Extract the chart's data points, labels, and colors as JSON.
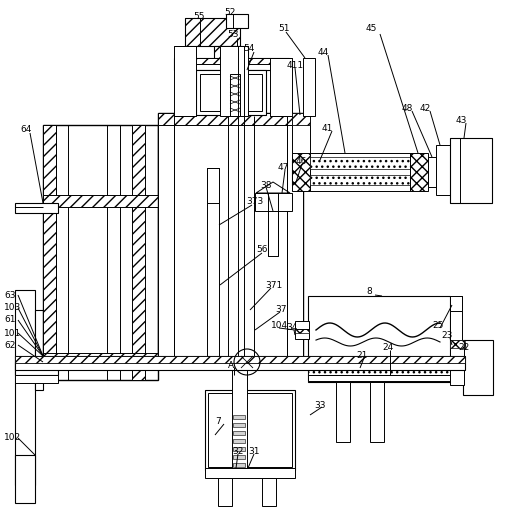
{
  "bg_color": "#ffffff",
  "fig_width": 5.06,
  "fig_height": 5.12,
  "dpi": 100
}
